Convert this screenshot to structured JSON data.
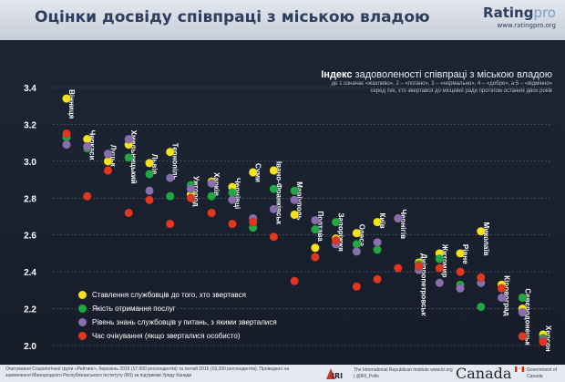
{
  "header": {
    "title": "Оцінки досвіду співпраці з міською владою",
    "logo_main": "Rating",
    "logo_pro": "pro",
    "logo_url": "www.ratingpro.org"
  },
  "subtitle": {
    "lead": "Індекс",
    "main": " задоволеності співпраці з міською владою",
    "note1": "де 1 означає «жахливо», 2 – «погано», 3 – «нормально», 4 – «добре», а 5 – «відмінно»",
    "note2": "серед тих, хто звертався до місцевої ради протягом останніх двох років"
  },
  "legend": [
    {
      "label": "Ставлення службовців до того, хто звертався",
      "color": "#f5e11c"
    },
    {
      "label": "Якість отримання послуг",
      "color": "#21a844"
    },
    {
      "label": "Рівень знань службовців у питань, з якими зверталися",
      "color": "#8a6fae"
    },
    {
      "label": "Час очікування (якщо зверталися особисто)",
      "color": "#e2371f"
    }
  ],
  "footer": {
    "source": "Опитування Соціологічної групи «Рейтинг», березень 2015 (17,600 респондентів) та лютий 2016 (19,200 респондентів). Проведено на замовлення Міжнародного Республіканського Інституту (IRI) за підтримки Уряду Канади",
    "iri_mark": "IRI",
    "iri_name": "The International Republican Institute www.iri.org | @IRI_Polls",
    "canada": "Canada",
    "gov": "Government of Canada"
  },
  "chart_data": {
    "type": "scatter",
    "title": "Оцінки досвіду співпраці з міською владою",
    "ylim": [
      2.0,
      3.4
    ],
    "yticks": [
      "2.0",
      "2.2",
      "2.4",
      "2.6",
      "2.8",
      "3.0",
      "3.2",
      "3.4"
    ],
    "grid": true,
    "categories": [
      "Вінниця",
      "Черкаси",
      "Луцьк",
      "Хмельницький",
      "Львів",
      "Тернопіль",
      "Ужгород",
      "Харків",
      "Чернівці",
      "Суми",
      "Івано-Франківськ",
      "Маріуполь",
      "Полтава",
      "Запоріжжя",
      "Одеса",
      "Київ",
      "Чернігів",
      "Дніпропетровськ",
      "Житомир",
      "Рівне",
      "Миколаїв",
      "Кіровоград",
      "Севєродонецьк",
      "Херсон"
    ],
    "series": [
      {
        "name": "Ставлення службовців до того, хто звертався",
        "color": "#f5e11c",
        "values": [
          3.34,
          3.12,
          3.0,
          3.09,
          2.99,
          3.05,
          2.82,
          2.89,
          2.86,
          2.94,
          2.95,
          2.71,
          2.53,
          2.58,
          2.61,
          2.67,
          null,
          2.45,
          2.5,
          2.5,
          2.62,
          2.33,
          2.2,
          2.06
        ]
      },
      {
        "name": "Якість отримання послуг",
        "color": "#21a844",
        "values": [
          3.13,
          3.07,
          3.04,
          3.02,
          2.93,
          2.81,
          2.87,
          2.81,
          2.83,
          2.64,
          2.85,
          2.84,
          2.63,
          2.67,
          2.55,
          2.52,
          null,
          2.44,
          2.47,
          2.33,
          2.21,
          2.31,
          2.26,
          2.04
        ]
      },
      {
        "name": "Рівень знань службовців у питань, з якими зверталися",
        "color": "#8a6fae",
        "values": [
          3.09,
          3.08,
          3.04,
          3.12,
          2.84,
          2.91,
          2.85,
          2.88,
          2.79,
          2.69,
          2.74,
          2.79,
          2.68,
          2.55,
          2.51,
          2.56,
          2.69,
          2.41,
          2.34,
          2.31,
          2.34,
          2.26,
          2.18,
          2.03
        ]
      },
      {
        "name": "Час очікування (якщо зверталися особисто)",
        "color": "#e2371f",
        "values": [
          3.15,
          2.81,
          2.95,
          2.72,
          2.79,
          2.66,
          2.8,
          2.72,
          2.66,
          2.67,
          2.59,
          2.35,
          2.48,
          2.57,
          2.32,
          2.36,
          2.42,
          2.43,
          2.42,
          2.4,
          2.37,
          2.31,
          2.05,
          2.02
        ]
      }
    ]
  }
}
